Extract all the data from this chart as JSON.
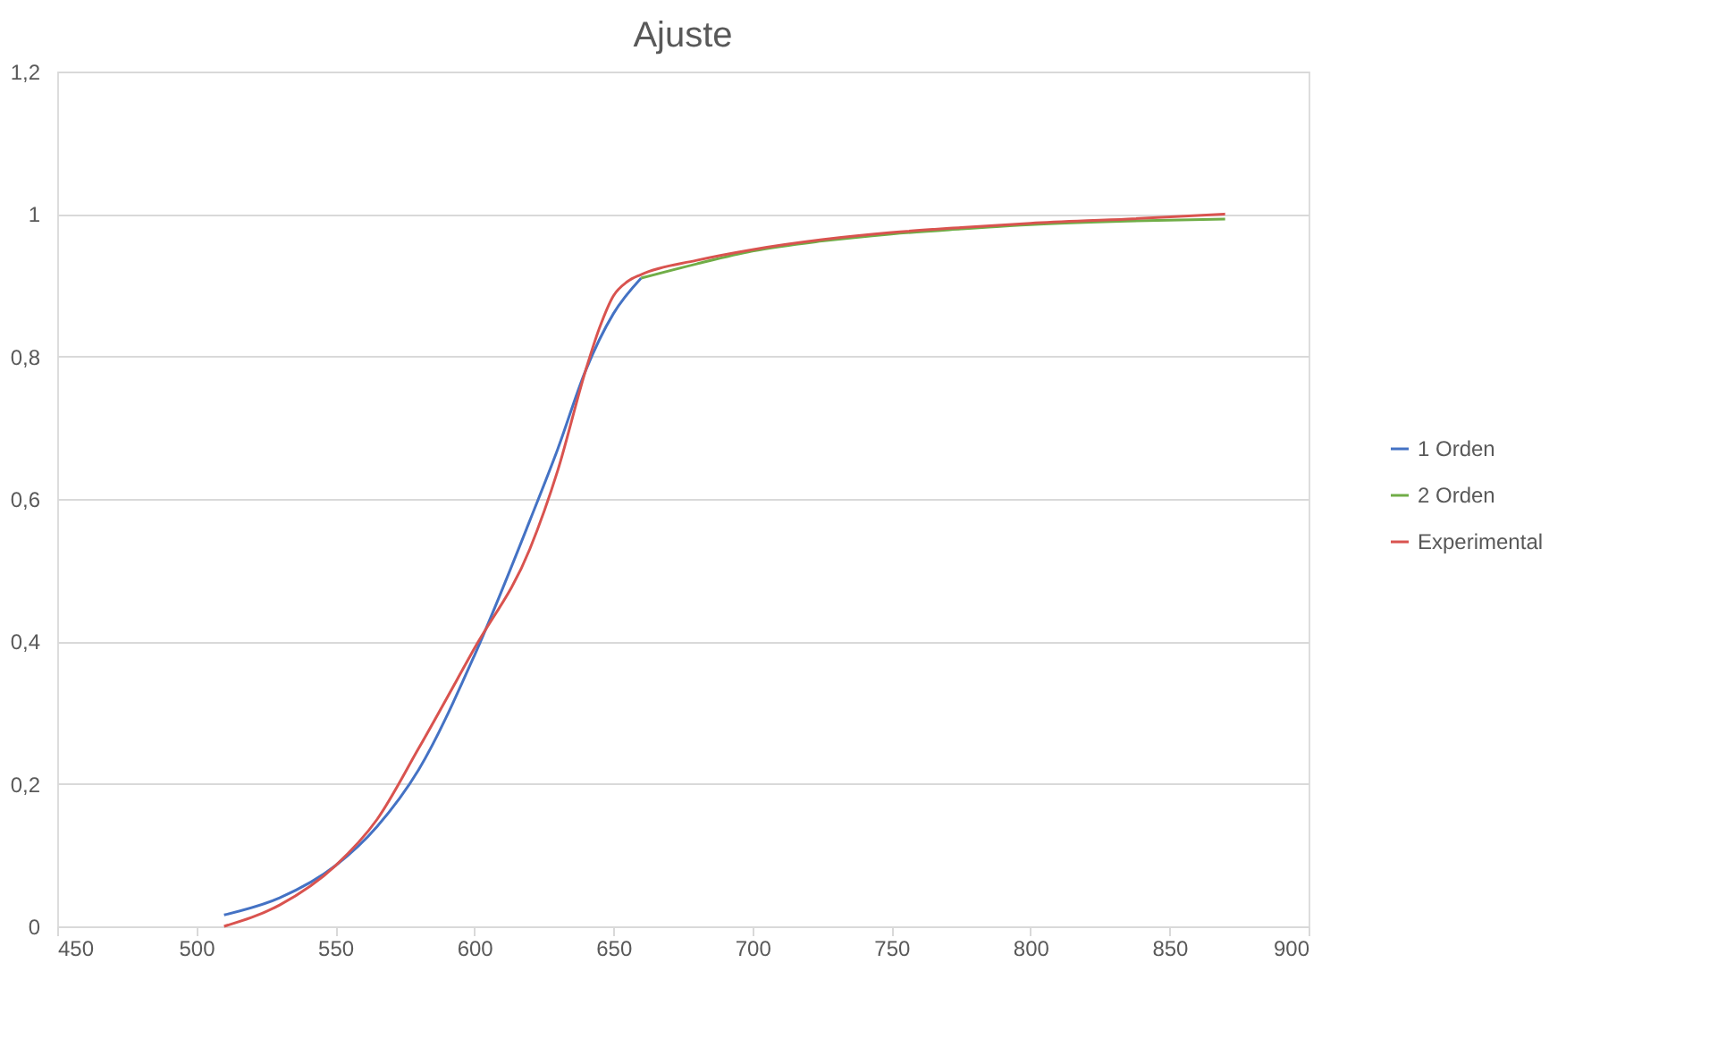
{
  "chart_data": {
    "type": "line",
    "title": "Ajuste",
    "xlim": [
      450,
      900
    ],
    "xticks": [
      450,
      500,
      550,
      600,
      650,
      700,
      750,
      800,
      850,
      900
    ],
    "ylim": [
      0,
      1.2
    ],
    "yticks": [
      0,
      {
        "value": 0.2,
        "label": "0,2"
      },
      {
        "value": 0.4,
        "label": "0,4"
      },
      {
        "value": 0.6,
        "label": "0,6"
      },
      {
        "value": 0.8,
        "label": "0,8"
      },
      1,
      {
        "value": 1.2,
        "label": "1,2"
      }
    ],
    "grid": "y",
    "legend": "right",
    "marker": "none",
    "line_style": "solid",
    "series": [
      {
        "name": "1 Orden",
        "color": "#4472c4",
        "x": [
          510,
          530,
          550,
          565,
          580,
          600,
          620,
          630,
          640,
          650,
          660
        ],
        "values": [
          0.016,
          0.04,
          0.085,
          0.14,
          0.22,
          0.38,
          0.57,
          0.67,
          0.78,
          0.86,
          0.91
        ]
      },
      {
        "name": "2 Orden",
        "color": "#70ad47",
        "x": [
          660,
          680,
          700,
          725,
          750,
          775,
          800,
          835,
          870
        ],
        "values": [
          0.91,
          0.93,
          0.948,
          0.962,
          0.972,
          0.979,
          0.985,
          0.99,
          0.993
        ]
      },
      {
        "name": "Experimental",
        "color": "#d9534f",
        "x": [
          510,
          530,
          550,
          565,
          580,
          600,
          620,
          630,
          640,
          645,
          650,
          655,
          660,
          680,
          700,
          725,
          750,
          775,
          800,
          835,
          870
        ],
        "values": [
          0,
          0.03,
          0.085,
          0.15,
          0.25,
          0.39,
          0.53,
          0.64,
          0.78,
          0.84,
          0.885,
          0.905,
          0.915,
          0.935,
          0.95,
          0.964,
          0.974,
          0.981,
          0.987,
          0.993,
          1.0
        ]
      }
    ]
  }
}
